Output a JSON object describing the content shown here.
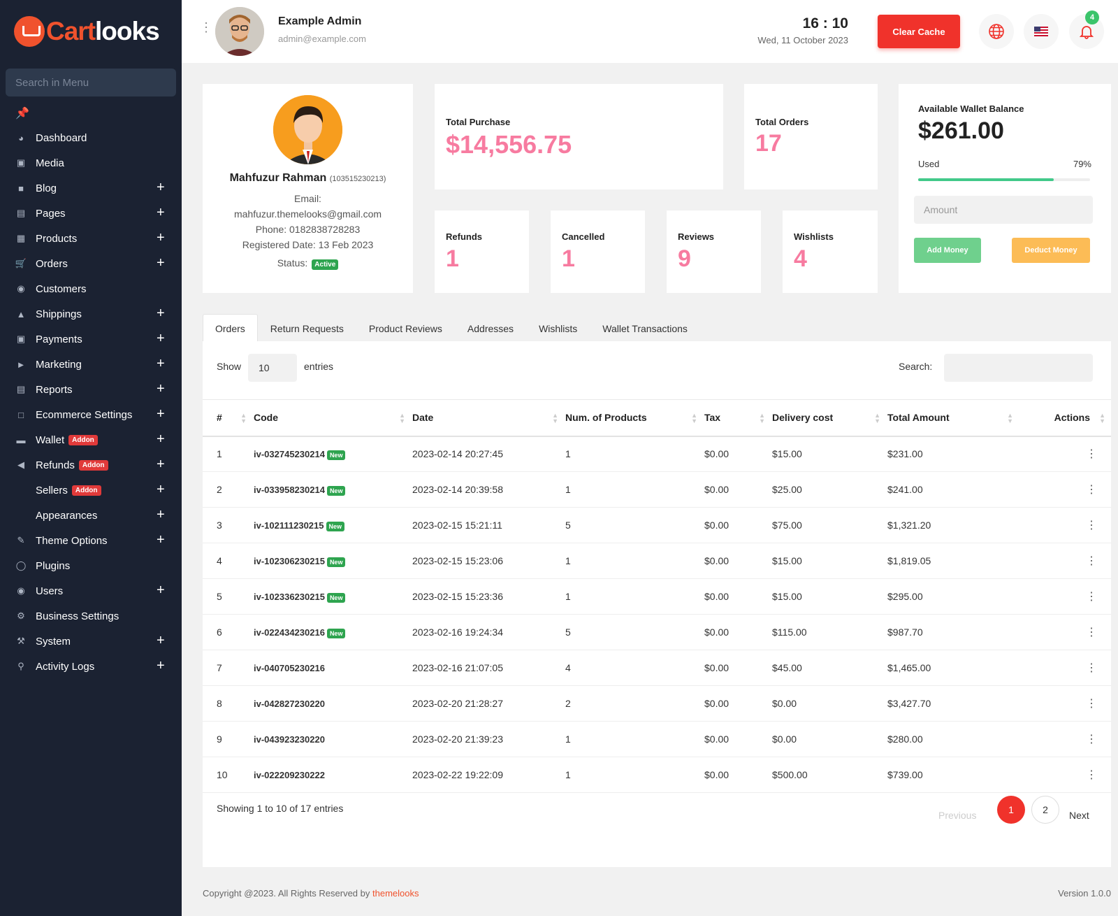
{
  "sidebar": {
    "logo_a": "Cart",
    "logo_b": "looks",
    "search_placeholder": "Search in Menu",
    "items": [
      {
        "label": "Dashboard",
        "icon": "dashboard-icon",
        "has_plus": false
      },
      {
        "label": "Media",
        "icon": "media-icon",
        "has_plus": false
      },
      {
        "label": "Blog",
        "icon": "blog-icon",
        "has_plus": true
      },
      {
        "label": "Pages",
        "icon": "pages-icon",
        "has_plus": true
      },
      {
        "label": "Products",
        "icon": "products-icon",
        "has_plus": true
      },
      {
        "label": "Orders",
        "icon": "cart-icon",
        "has_plus": true
      },
      {
        "label": "Customers",
        "icon": "users-icon",
        "has_plus": false
      },
      {
        "label": "Shippings",
        "icon": "shipping-icon",
        "has_plus": true
      },
      {
        "label": "Payments",
        "icon": "payments-icon",
        "has_plus": true
      },
      {
        "label": "Marketing",
        "icon": "megaphone-icon",
        "has_plus": true
      },
      {
        "label": "Reports",
        "icon": "reports-icon",
        "has_plus": true
      },
      {
        "label": "Ecommerce Settings",
        "icon": "window-icon",
        "has_plus": true
      },
      {
        "label": "Wallet",
        "icon": "wallet-icon",
        "has_plus": true,
        "addon": "Addon"
      },
      {
        "label": "Refunds",
        "icon": "rewind-icon",
        "has_plus": true,
        "addon": "Addon"
      },
      {
        "label": "Sellers",
        "icon": "none",
        "has_plus": true,
        "addon": "Addon"
      },
      {
        "label": "Appearances",
        "icon": "none",
        "has_plus": true
      },
      {
        "label": "Theme Options",
        "icon": "brush-icon",
        "has_plus": true
      },
      {
        "label": "Plugins",
        "icon": "plugins-icon",
        "has_plus": false
      },
      {
        "label": "Users",
        "icon": "users-icon",
        "has_plus": true
      },
      {
        "label": "Business Settings",
        "icon": "gears-icon",
        "has_plus": false
      },
      {
        "label": "System",
        "icon": "wrench-icon",
        "has_plus": true
      },
      {
        "label": "Activity Logs",
        "icon": "key-icon",
        "has_plus": true
      }
    ]
  },
  "header": {
    "admin_name": "Example Admin",
    "admin_email": "admin@example.com",
    "time": "16 : 10",
    "date": "Wed, 11 October 2023",
    "clear_cache": "Clear Cache",
    "notification_count": "4"
  },
  "profile": {
    "name": "Mahfuzur Rahman",
    "id": "(103515230213)",
    "email_label": "Email:",
    "email": "mahfuzur.themelooks@gmail.com",
    "phone": "Phone: 0182838728283",
    "registered": "Registered Date: 13 Feb 2023",
    "status_label": "Status:",
    "status": "Active"
  },
  "stats": {
    "total_purchase_label": "Total Purchase",
    "total_purchase": "$14,556.75",
    "total_orders_label": "Total Orders",
    "total_orders": "17",
    "refunds_label": "Refunds",
    "refunds": "1",
    "cancelled_label": "Cancelled",
    "cancelled": "1",
    "reviews_label": "Reviews",
    "reviews": "9",
    "wishlists_label": "Wishlists",
    "wishlists": "4"
  },
  "wallet": {
    "title": "Available Wallet Balance",
    "balance": "$261.00",
    "used_label": "Used",
    "used_pct": "79%",
    "used_fraction": 0.79,
    "amount_placeholder": "Amount",
    "add_label": "Add Money",
    "deduct_label": "Deduct Money"
  },
  "tabs": [
    "Orders",
    "Return Requests",
    "Product Reviews",
    "Addresses",
    "Wishlists",
    "Wallet Transactions"
  ],
  "table": {
    "show_label": "Show",
    "show_value": "10",
    "entries_label": "entries",
    "search_label": "Search:",
    "columns": [
      "#",
      "Code",
      "Date",
      "Num. of Products",
      "Tax",
      "Delivery cost",
      "Total Amount",
      "Actions"
    ],
    "new_badge": "New",
    "rows": [
      {
        "n": "1",
        "code": "iv-032745230214",
        "new": true,
        "date": "2023-02-14 20:27:45",
        "products": "1",
        "tax": "$0.00",
        "delivery": "$15.00",
        "total": "$231.00"
      },
      {
        "n": "2",
        "code": "iv-033958230214",
        "new": true,
        "date": "2023-02-14 20:39:58",
        "products": "1",
        "tax": "$0.00",
        "delivery": "$25.00",
        "total": "$241.00"
      },
      {
        "n": "3",
        "code": "iv-102111230215",
        "new": true,
        "date": "2023-02-15 15:21:11",
        "products": "5",
        "tax": "$0.00",
        "delivery": "$75.00",
        "total": "$1,321.20"
      },
      {
        "n": "4",
        "code": "iv-102306230215",
        "new": true,
        "date": "2023-02-15 15:23:06",
        "products": "1",
        "tax": "$0.00",
        "delivery": "$15.00",
        "total": "$1,819.05"
      },
      {
        "n": "5",
        "code": "iv-102336230215",
        "new": true,
        "date": "2023-02-15 15:23:36",
        "products": "1",
        "tax": "$0.00",
        "delivery": "$15.00",
        "total": "$295.00"
      },
      {
        "n": "6",
        "code": "iv-022434230216",
        "new": true,
        "date": "2023-02-16 19:24:34",
        "products": "5",
        "tax": "$0.00",
        "delivery": "$115.00",
        "total": "$987.70"
      },
      {
        "n": "7",
        "code": "iv-040705230216",
        "new": false,
        "date": "2023-02-16 21:07:05",
        "products": "4",
        "tax": "$0.00",
        "delivery": "$45.00",
        "total": "$1,465.00"
      },
      {
        "n": "8",
        "code": "iv-042827230220",
        "new": false,
        "date": "2023-02-20 21:28:27",
        "products": "2",
        "tax": "$0.00",
        "delivery": "$0.00",
        "total": "$3,427.70"
      },
      {
        "n": "9",
        "code": "iv-043923230220",
        "new": false,
        "date": "2023-02-20 21:39:23",
        "products": "1",
        "tax": "$0.00",
        "delivery": "$0.00",
        "total": "$280.00"
      },
      {
        "n": "10",
        "code": "iv-022209230222",
        "new": false,
        "date": "2023-02-22 19:22:09",
        "products": "1",
        "tax": "$0.00",
        "delivery": "$500.00",
        "total": "$739.00"
      }
    ],
    "showing": "Showing 1 to 10 of 17 entries",
    "prev": "Previous",
    "page1": "1",
    "page2": "2",
    "next": "Next"
  },
  "footer": {
    "copyright": "Copyright @2023. All Rights Reserved by",
    "link": "themelooks",
    "version": "Version 1.0.0"
  },
  "colors": {
    "accent": "#f0322b",
    "sidebar": "#1b2232",
    "stat_pink": "#f77ba0",
    "success": "#2ea44f"
  }
}
